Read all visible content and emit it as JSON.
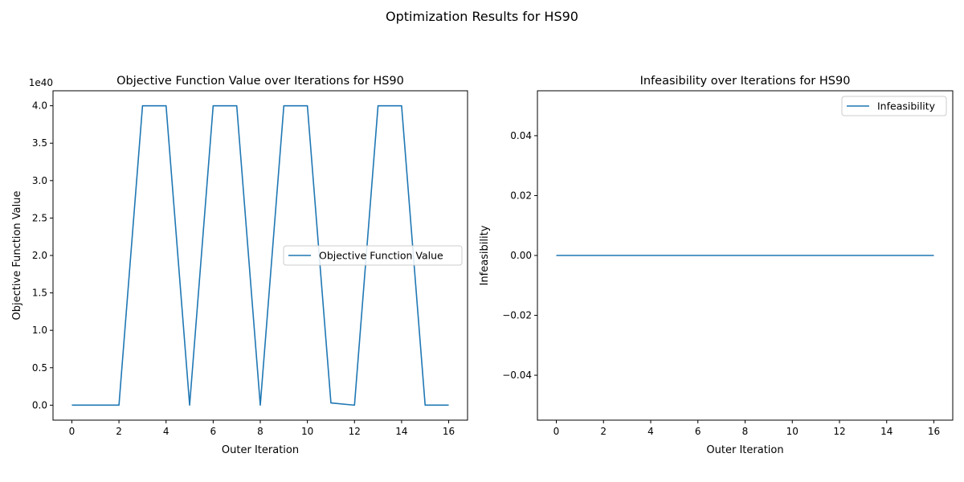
{
  "figure": {
    "suptitle": "Optimization Results for HS90"
  },
  "colors": {
    "line": "#1f77b4",
    "axes": "#000000",
    "background": "#ffffff"
  },
  "chart_data": [
    {
      "type": "line",
      "title": "Objective Function Value over Iterations for HS90",
      "xlabel": "Outer Iteration",
      "ylabel": "Objective Function Value",
      "y_offset_label": "1e40",
      "y_scale_exponent": 40,
      "xlim": [
        -0.8,
        16.8
      ],
      "ylim": [
        -0.2,
        4.2
      ],
      "xticks": [
        0,
        2,
        4,
        6,
        8,
        10,
        12,
        14,
        16
      ],
      "xtick_labels": [
        "0",
        "2",
        "4",
        "6",
        "8",
        "10",
        "12",
        "14",
        "16"
      ],
      "yticks": [
        0.0,
        0.5,
        1.0,
        1.5,
        2.0,
        2.5,
        3.0,
        3.5,
        4.0
      ],
      "ytick_labels": [
        "0.0",
        "0.5",
        "1.0",
        "1.5",
        "2.0",
        "2.5",
        "3.0",
        "3.5",
        "4.0"
      ],
      "legend": {
        "placement": "center-right",
        "entries": [
          "Objective Function Value"
        ]
      },
      "grid": false,
      "series": [
        {
          "name": "Objective Function Value",
          "x": [
            0,
            1,
            2,
            3,
            4,
            5,
            6,
            7,
            8,
            9,
            10,
            11,
            12,
            13,
            14,
            15,
            16
          ],
          "y": [
            0.0,
            0.0,
            0.0,
            4.0,
            4.0,
            0.0,
            4.0,
            4.0,
            0.0,
            4.0,
            4.0,
            0.03,
            0.0,
            4.0,
            4.0,
            0.0,
            0.0
          ]
        }
      ]
    },
    {
      "type": "line",
      "title": "Infeasibility over Iterations for HS90",
      "xlabel": "Outer Iteration",
      "ylabel": "Infeasibility",
      "xlim": [
        -0.8,
        16.8
      ],
      "ylim": [
        -0.055,
        0.055
      ],
      "xticks": [
        0,
        2,
        4,
        6,
        8,
        10,
        12,
        14,
        16
      ],
      "xtick_labels": [
        "0",
        "2",
        "4",
        "6",
        "8",
        "10",
        "12",
        "14",
        "16"
      ],
      "yticks": [
        -0.04,
        -0.02,
        0.0,
        0.02,
        0.04
      ],
      "ytick_labels": [
        "−0.04",
        "−0.02",
        "0.00",
        "0.02",
        "0.04"
      ],
      "legend": {
        "placement": "upper-right",
        "entries": [
          "Infeasibility"
        ]
      },
      "grid": false,
      "series": [
        {
          "name": "Infeasibility",
          "x": [
            0,
            1,
            2,
            3,
            4,
            5,
            6,
            7,
            8,
            9,
            10,
            11,
            12,
            13,
            14,
            15,
            16
          ],
          "y": [
            0,
            0,
            0,
            0,
            0,
            0,
            0,
            0,
            0,
            0,
            0,
            0,
            0,
            0,
            0,
            0,
            0
          ]
        }
      ]
    }
  ]
}
